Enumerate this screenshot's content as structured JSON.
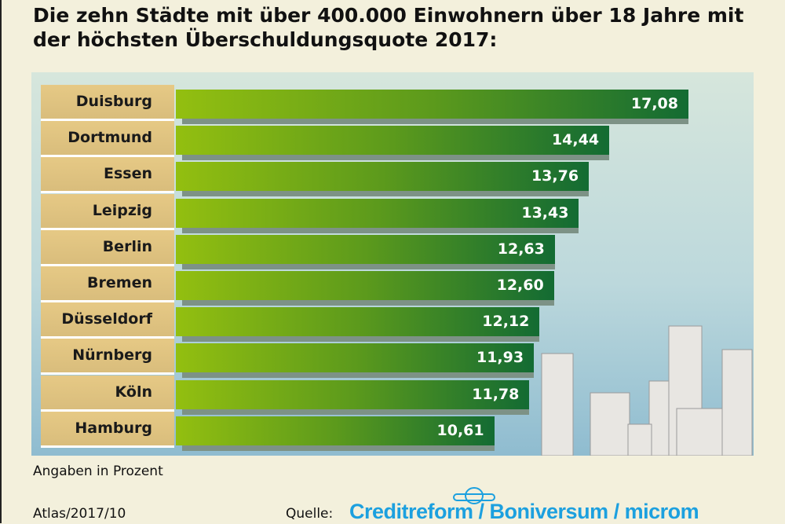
{
  "title": "Die zehn Städte mit über 400.000 Einwohnern über 18 Jahre mit der höchsten Überschuldungsquote 2017:",
  "chart_data": {
    "type": "bar",
    "orientation": "horizontal",
    "title": "Die zehn Städte mit über 400.000 Einwohnern über 18 Jahre mit der höchsten Überschuldungsquote 2017:",
    "categories": [
      "Duisburg",
      "Dortmund",
      "Essen",
      "Leipzig",
      "Berlin",
      "Bremen",
      "Düsseldorf",
      "Nürnberg",
      "Köln",
      "Hamburg"
    ],
    "values": [
      17.08,
      14.44,
      13.76,
      13.43,
      12.63,
      12.6,
      12.12,
      11.93,
      11.78,
      10.61
    ],
    "labels": [
      "17,08",
      "14,44",
      "13,76",
      "13,43",
      "12,63",
      "12,60",
      "12,12",
      "11,93",
      "11,78",
      "10,61"
    ],
    "unit_note": "Angaben in Prozent",
    "xlim": [
      0,
      17.08
    ],
    "grid": false,
    "colors": {
      "bar_start": "#93bf10",
      "bar_end": "#136b33",
      "label_bg": "#e6c985",
      "panel": "#bcd8dc"
    }
  },
  "footer": {
    "atlas": "Atlas/2017/10",
    "quelle_label": "Quelle:",
    "source": "Creditreform / Boniversum / microm",
    "logo": "Creditreform"
  }
}
